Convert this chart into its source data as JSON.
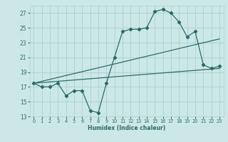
{
  "xlabel": "Humidex (Indice chaleur)",
  "bg_color": "#cce8e6",
  "grid_color": "#aacfcc",
  "line_color": "#2a6b6b",
  "xlim": [
    -0.5,
    23.5
  ],
  "ylim": [
    13,
    28
  ],
  "yticks": [
    13,
    15,
    17,
    19,
    21,
    23,
    25,
    27
  ],
  "xticks": [
    0,
    1,
    2,
    3,
    4,
    5,
    6,
    7,
    8,
    9,
    10,
    11,
    12,
    13,
    14,
    15,
    16,
    17,
    18,
    19,
    20,
    21,
    22,
    23
  ],
  "line1_x": [
    0,
    1,
    2,
    3,
    4,
    5,
    6,
    7,
    8,
    9,
    10,
    11,
    12,
    13,
    14,
    15,
    16,
    17,
    18,
    19,
    20,
    21,
    22,
    23
  ],
  "line1_y": [
    17.5,
    17.0,
    17.0,
    17.5,
    15.8,
    16.5,
    16.5,
    13.8,
    13.5,
    17.5,
    21.0,
    24.5,
    24.8,
    24.8,
    25.0,
    27.2,
    27.5,
    27.0,
    25.8,
    23.8,
    24.5,
    20.0,
    19.5,
    19.8
  ],
  "line2_x": [
    0,
    23
  ],
  "line2_y": [
    17.5,
    19.5
  ],
  "line3_x": [
    0,
    23
  ],
  "line3_y": [
    17.5,
    23.5
  ]
}
